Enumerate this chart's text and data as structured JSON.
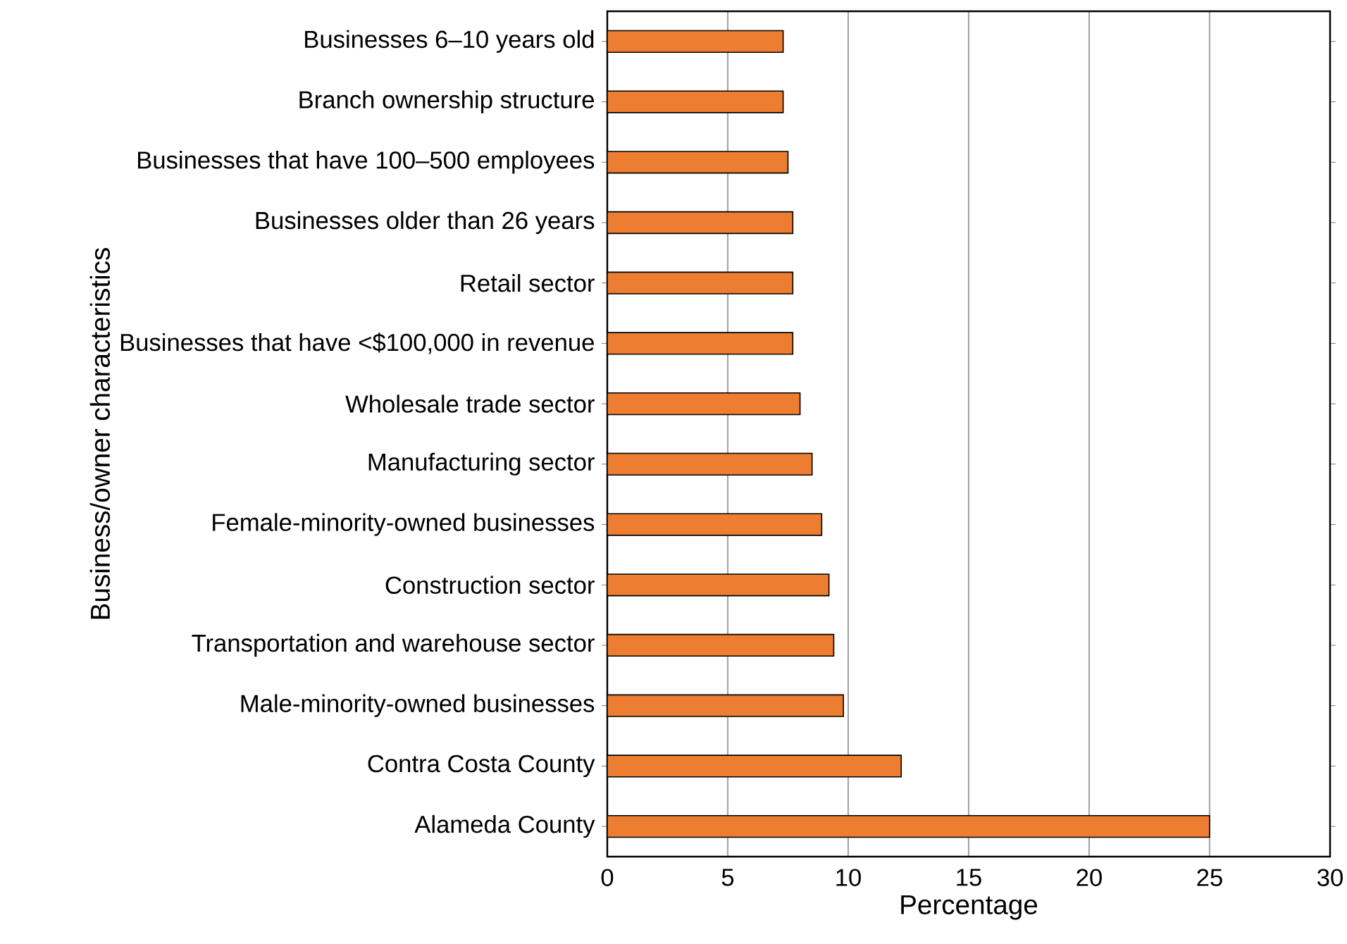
{
  "chart_data": {
    "type": "bar",
    "orientation": "horizontal",
    "xlabel": "Percentage",
    "ylabel": "Business/owner characteristics",
    "categories": [
      "Businesses 6–10 years old",
      "Branch ownership structure",
      "Businesses that have 100–500 employees",
      "Businesses older than 26 years",
      "Retail sector",
      "Businesses that have <$100,000 in revenue",
      "Wholesale trade sector",
      "Manufacturing sector",
      "Female-minority-owned businesses",
      "Construction sector",
      "Transportation and warehouse sector",
      "Male-minority-owned businesses",
      "Contra Costa County",
      "Alameda County"
    ],
    "values": [
      7.3,
      7.3,
      7.5,
      7.7,
      7.7,
      7.7,
      8.0,
      8.5,
      8.9,
      9.2,
      9.4,
      9.8,
      12.2,
      25.0
    ],
    "color": "#ed7d31",
    "xlim": [
      0,
      30
    ],
    "xticks": [
      0,
      5,
      10,
      15,
      20,
      25,
      30
    ],
    "grid": "x"
  }
}
